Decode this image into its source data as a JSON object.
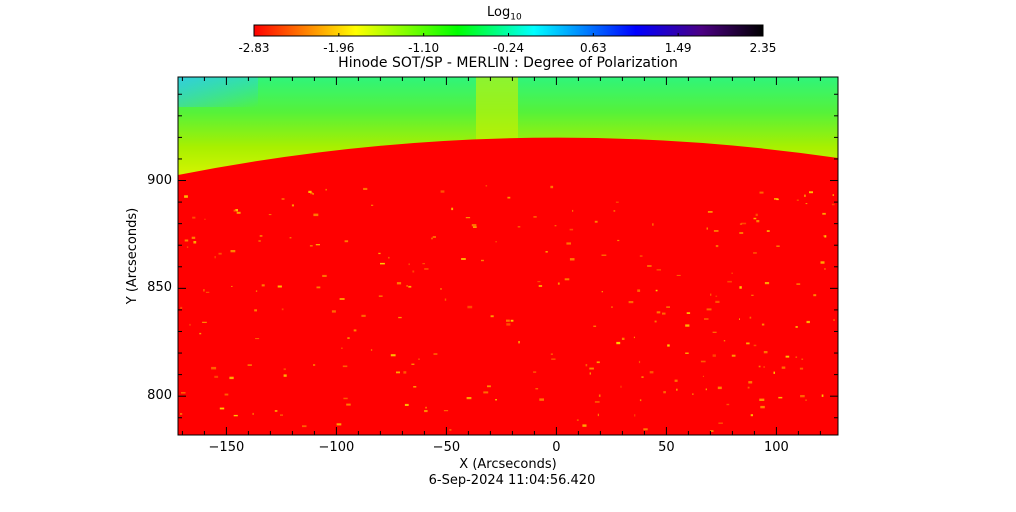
{
  "colorbar": {
    "label_base": "Log",
    "label_sub": "10",
    "ticks": [
      "-2.83",
      "-1.96",
      "-1.10",
      "-0.24",
      "0.63",
      "1.49",
      "2.35"
    ],
    "range": [
      -2.83,
      2.35
    ],
    "colors": [
      "#ff0000",
      "#ffff00",
      "#00ff00",
      "#00ffff",
      "#0000ff",
      "#000000"
    ]
  },
  "chart_data": {
    "type": "heatmap",
    "title": "Hinode SOT/SP - MERLIN : Degree of Polarization",
    "xlabel": "X (Arcseconds)",
    "ylabel": "Y (Arcseconds)",
    "xlim": [
      -172,
      128
    ],
    "ylim": [
      782,
      948
    ],
    "xticks": [
      -150,
      -100,
      -50,
      0,
      50,
      100
    ],
    "yticks": [
      800,
      850,
      900
    ],
    "limb": {
      "description_values": [
        [
          -172,
          901
        ],
        [
          -20,
          917
        ],
        [
          128,
          909
        ]
      ]
    },
    "regions": {
      "on_disk_log10": -2.83,
      "off_limb_log10_range": [
        -1.1,
        -0.24
      ]
    },
    "timestamp": "6-Sep-2024 11:04:56.420"
  }
}
